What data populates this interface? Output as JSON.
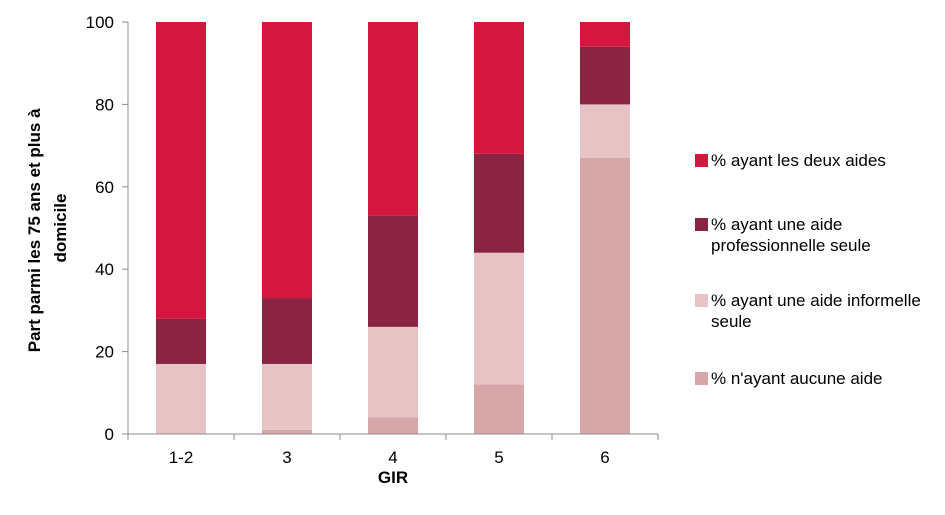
{
  "chart_data": {
    "type": "bar",
    "stacked": true,
    "categories": [
      "1-2",
      "3",
      "4",
      "5",
      "6"
    ],
    "series": [
      {
        "name": "% n'ayant aucune aide",
        "color": "#d6a6a8",
        "values": [
          0,
          1,
          4,
          12,
          67
        ]
      },
      {
        "name": "% ayant une aide informelle seule",
        "color": "#e6c3c5",
        "values": [
          17,
          16,
          22,
          32,
          13
        ]
      },
      {
        "name": "% ayant une aide professionnelle seule",
        "color": "#8b2443",
        "values": [
          11,
          16,
          27,
          24,
          14
        ]
      },
      {
        "name": "% ayant les deux aides",
        "color": "#d4173e",
        "values": [
          72,
          67,
          47,
          32,
          6
        ]
      }
    ],
    "legend_order": [
      3,
      2,
      1,
      0
    ],
    "xlabel": "GIR",
    "ylabel": "Part parmi les 75 ans et plus à domicile",
    "ylim": [
      0,
      100
    ],
    "yticks": [
      "0",
      "20",
      "40",
      "60",
      "80",
      "100"
    ],
    "grid": false,
    "legend_position": "right"
  }
}
